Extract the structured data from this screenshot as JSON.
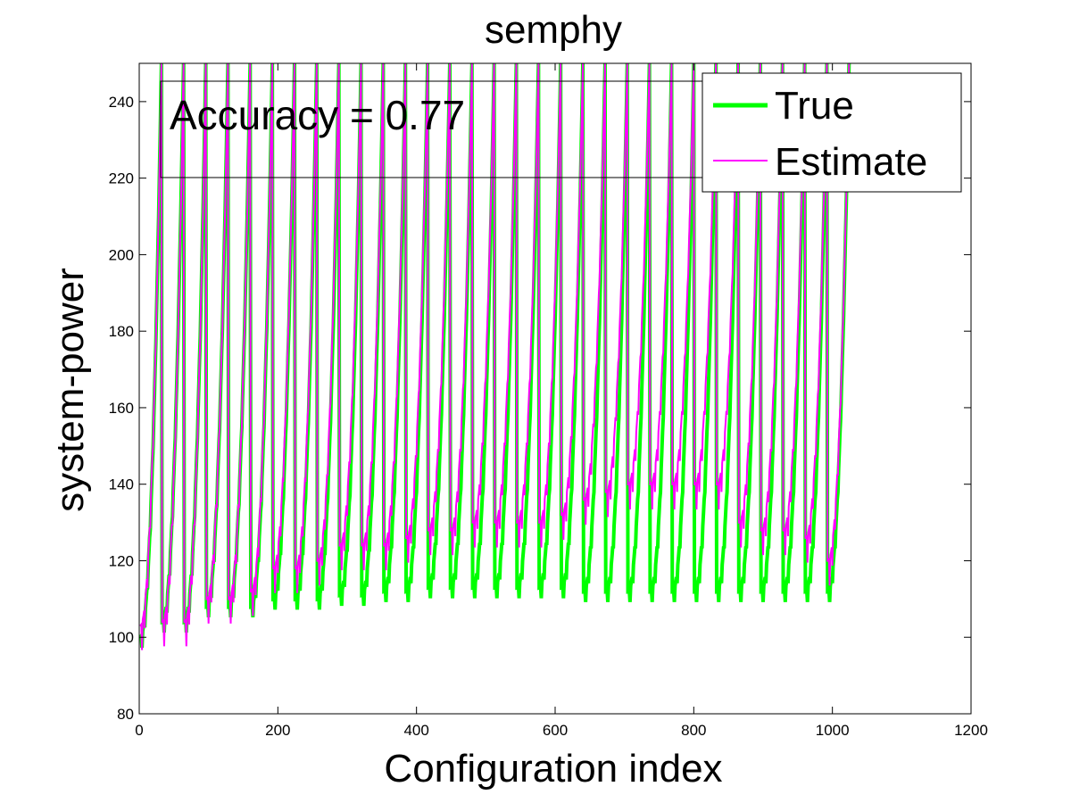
{
  "chart_data": {
    "type": "line",
    "title": "semphy",
    "xlabel": "Configuration index",
    "ylabel": "system-power",
    "xlim": [
      0,
      1200
    ],
    "ylim": [
      80,
      250
    ],
    "x_ticks": [
      0,
      200,
      400,
      600,
      800,
      1000,
      1200
    ],
    "y_ticks": [
      80,
      100,
      120,
      140,
      160,
      180,
      200,
      220,
      240
    ],
    "x_tick_labels": [
      "0",
      "200",
      "400",
      "600",
      "800",
      "1000",
      "1200"
    ],
    "y_tick_labels": [
      "80",
      "100",
      "120",
      "140",
      "160",
      "180",
      "200",
      "220",
      "240"
    ],
    "grid": false,
    "legend_position": "top-right",
    "annotation": "Accuracy = 0.77",
    "n_points": 1024,
    "cycle_length": 32,
    "series": [
      {
        "name": "True",
        "color": "#00ff00",
        "cycle_start_values": [
          100,
          104,
          104,
          108,
          108,
          108,
          110,
          110,
          110,
          111,
          111,
          112,
          112,
          113,
          113,
          113,
          113,
          113,
          113,
          113,
          112,
          112,
          112,
          112,
          112,
          112,
          112,
          112,
          112,
          112,
          112,
          112
        ],
        "cycle_peak_values": [
          250,
          250,
          250,
          250,
          250,
          250,
          250,
          250,
          250,
          250,
          250,
          250,
          250,
          250,
          250,
          250,
          250,
          250,
          250,
          250,
          250,
          250,
          250,
          250,
          250,
          250,
          250,
          250,
          250,
          250,
          250,
          250
        ]
      },
      {
        "name": "Estimate",
        "color": "#ff00ff",
        "cycle_start_values": [
          103,
          104,
          104,
          110,
          110,
          112,
          118,
          118,
          120,
          124,
          124,
          124,
          126,
          128,
          128,
          130,
          130,
          130,
          130,
          132,
          136,
          138,
          140,
          140,
          140,
          140,
          140,
          130,
          128,
          128,
          126,
          120
        ],
        "cycle_peak_values": [
          250,
          250,
          250,
          250,
          250,
          250,
          250,
          250,
          250,
          250,
          250,
          250,
          250,
          250,
          250,
          250,
          250,
          250,
          250,
          250,
          250,
          250,
          250,
          250,
          250,
          250,
          250,
          250,
          250,
          250,
          250,
          250
        ]
      }
    ]
  }
}
